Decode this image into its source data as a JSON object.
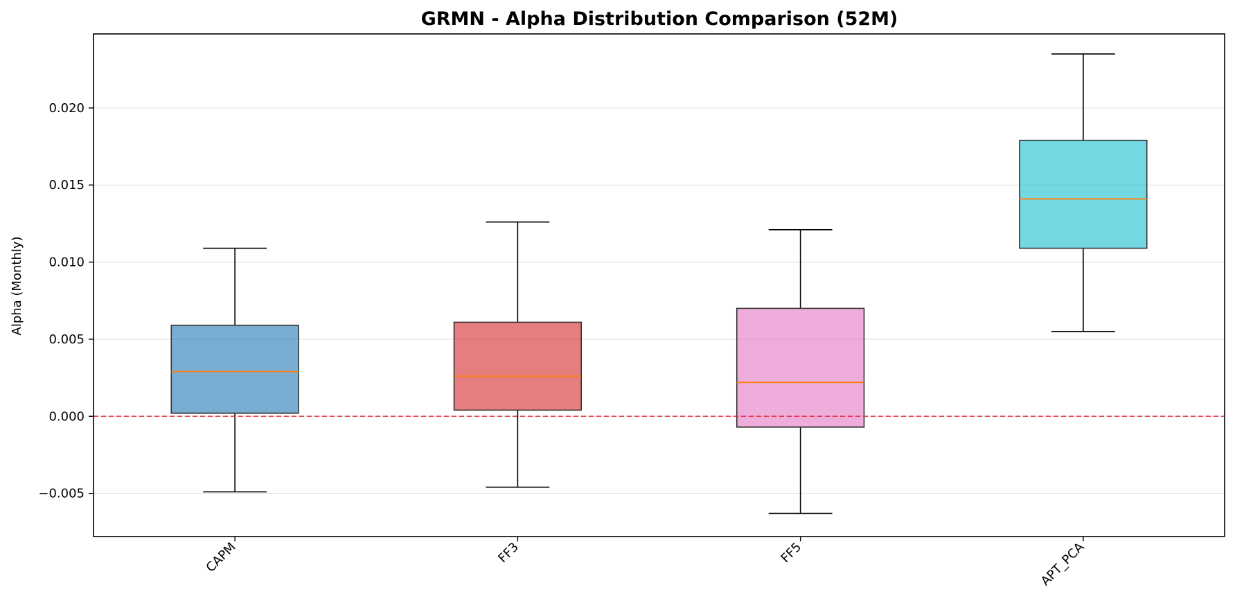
{
  "chart_data": {
    "type": "box",
    "title": "GRMN - Alpha Distribution Comparison (52M)",
    "xlabel": "",
    "ylabel": "Alpha (Monthly)",
    "ylim": [
      -0.0078,
      0.0248
    ],
    "yticks": [
      -0.005,
      0.0,
      0.005,
      0.01,
      0.015,
      0.02
    ],
    "ytick_labels": [
      "−0.005",
      "0.000",
      "0.005",
      "0.010",
      "0.015",
      "0.020"
    ],
    "grid": "y",
    "reference_line": {
      "y": 0.0,
      "color": "#e8192c",
      "style": "dashed"
    },
    "median_color": "#ff7f0e",
    "categories": [
      "CAPM",
      "FF3",
      "FF5",
      "APT_PCA"
    ],
    "boxes": [
      {
        "name": "CAPM",
        "whisker_low": -0.0049,
        "q1": 0.0002,
        "median": 0.0029,
        "q3": 0.0059,
        "whisker_high": 0.0109,
        "color": "#1f77b4"
      },
      {
        "name": "FF3",
        "whisker_low": -0.0046,
        "q1": 0.0004,
        "median": 0.0026,
        "q3": 0.0061,
        "whisker_high": 0.0126,
        "color": "#d62728"
      },
      {
        "name": "FF5",
        "whisker_low": -0.0063,
        "q1": -0.0007,
        "median": 0.0022,
        "q3": 0.007,
        "whisker_high": 0.0121,
        "color": "#e377c2"
      },
      {
        "name": "APT_PCA",
        "whisker_low": 0.0055,
        "q1": 0.0109,
        "median": 0.0141,
        "q3": 0.0179,
        "whisker_high": 0.0235,
        "color": "#17becf"
      }
    ]
  }
}
